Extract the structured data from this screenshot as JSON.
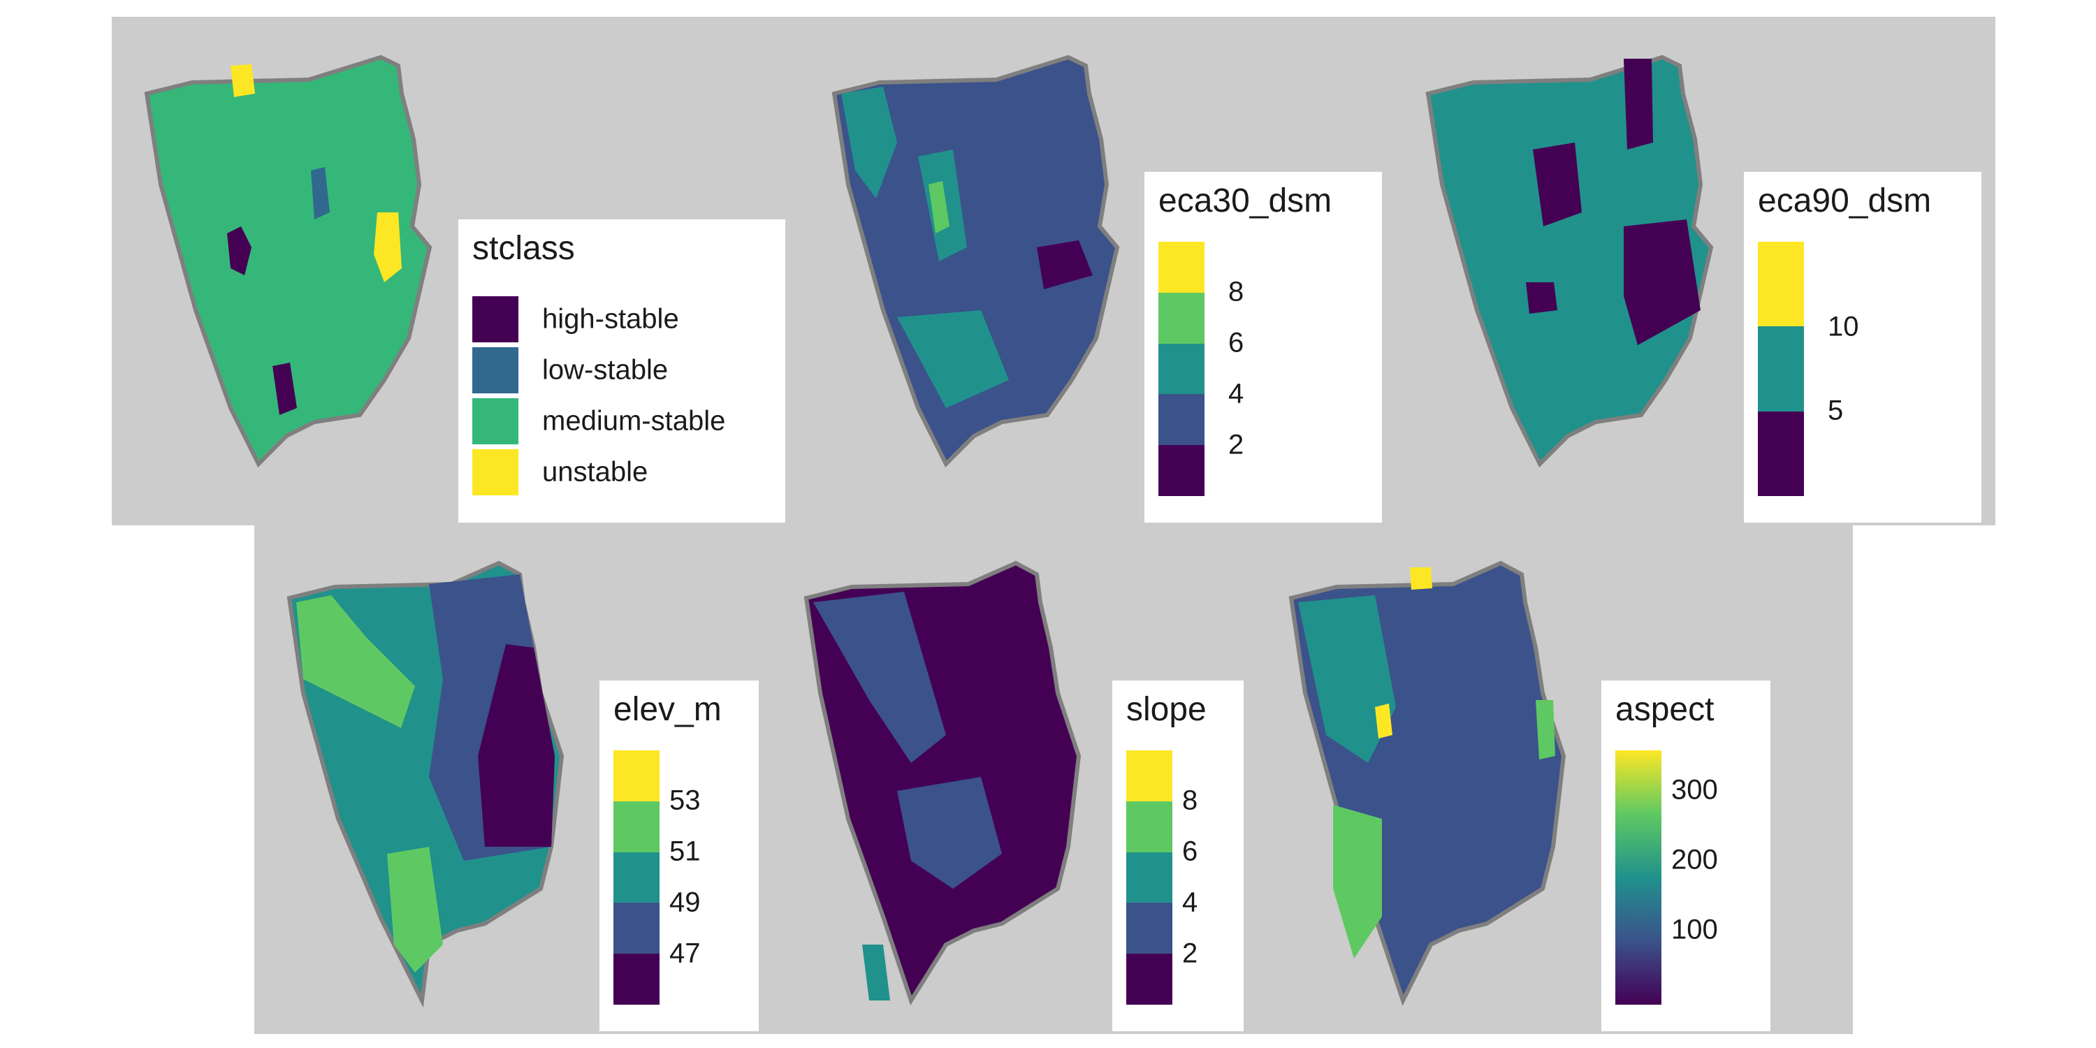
{
  "palette": {
    "viridis4": [
      "#440154",
      "#31688e",
      "#35b779",
      "#fde725"
    ],
    "viridis5": [
      "#440154",
      "#3b528b",
      "#21918c",
      "#5ec962",
      "#fde725"
    ],
    "viridis3": [
      "#440154",
      "#21918c",
      "#fde725"
    ],
    "panel_bg": "#cccccc"
  },
  "panels": [
    {
      "id": "stclass",
      "title": "stclass",
      "legend_type": "categorical",
      "base_color": "#35b779",
      "categories": [
        {
          "label": "high-stable",
          "color": "#440154"
        },
        {
          "label": "low-stable",
          "color": "#31688e"
        },
        {
          "label": "medium-stable",
          "color": "#35b779"
        },
        {
          "label": "unstable",
          "color": "#fde725"
        }
      ]
    },
    {
      "id": "eca30_dsm",
      "title": "eca30_dsm",
      "legend_type": "binned",
      "base_color": "#3b528b",
      "breaks": [
        "8",
        "6",
        "4",
        "2"
      ]
    },
    {
      "id": "eca90_dsm",
      "title": "eca90_dsm",
      "legend_type": "binned",
      "base_color": "#21918c",
      "breaks": [
        "10",
        "5"
      ]
    },
    {
      "id": "elev_m",
      "title": "elev_m",
      "legend_type": "binned",
      "base_color": "#21918c",
      "breaks": [
        "53",
        "51",
        "49",
        "47"
      ]
    },
    {
      "id": "slope",
      "title": "slope",
      "legend_type": "binned",
      "base_color": "#440154",
      "breaks": [
        "8",
        "6",
        "4",
        "2"
      ]
    },
    {
      "id": "aspect",
      "title": "aspect",
      "legend_type": "continuous",
      "base_color": "#3b528b",
      "breaks": [
        "300",
        "200",
        "100"
      ]
    }
  ]
}
